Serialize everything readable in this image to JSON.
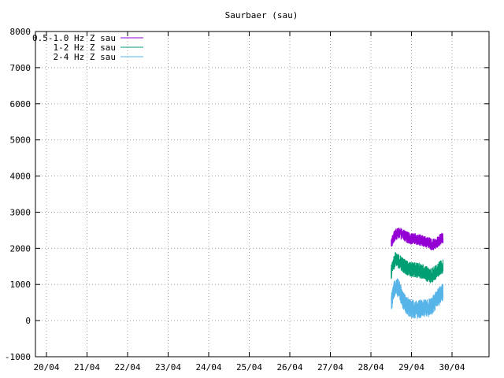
{
  "chart_data": {
    "type": "line",
    "title": "Saurbaer (sau)",
    "xlabel": "",
    "ylabel": "",
    "x_ticks": [
      "20/04",
      "21/04",
      "22/04",
      "23/04",
      "24/04",
      "25/04",
      "26/04",
      "27/04",
      "28/04",
      "29/04",
      "30/04"
    ],
    "x_range": [
      "19/04 20:00",
      "30/04 12:00"
    ],
    "y_ticks": [
      -1000,
      0,
      1000,
      2000,
      3000,
      4000,
      5000,
      6000,
      7000,
      8000
    ],
    "ylim": [
      -1000,
      8000
    ],
    "grid": true,
    "legend_position": "top-left",
    "series": [
      {
        "name": "0.5-1.0 Hz Z sau",
        "color": "#9400d3",
        "data_range": [
          "28/04 12:00",
          "29/04 19:00"
        ],
        "points": [
          [
            28.5,
            2150
          ],
          [
            28.6,
            2380
          ],
          [
            28.7,
            2420
          ],
          [
            28.8,
            2380
          ],
          [
            28.9,
            2300
          ],
          [
            29.0,
            2260
          ],
          [
            29.1,
            2250
          ],
          [
            29.2,
            2230
          ],
          [
            29.3,
            2200
          ],
          [
            29.4,
            2170
          ],
          [
            29.5,
            2100
          ],
          [
            29.6,
            2120
          ],
          [
            29.7,
            2230
          ],
          [
            29.78,
            2300
          ]
        ],
        "noise": 160
      },
      {
        "name": "1-2 Hz Z sau",
        "color": "#009e73",
        "data_range": [
          "28/04 12:00",
          "29/04 19:00"
        ],
        "points": [
          [
            28.5,
            1350
          ],
          [
            28.6,
            1700
          ],
          [
            28.7,
            1620
          ],
          [
            28.8,
            1520
          ],
          [
            28.9,
            1450
          ],
          [
            29.0,
            1420
          ],
          [
            29.1,
            1400
          ],
          [
            29.2,
            1380
          ],
          [
            29.3,
            1350
          ],
          [
            29.4,
            1280
          ],
          [
            29.5,
            1250
          ],
          [
            29.6,
            1330
          ],
          [
            29.7,
            1450
          ],
          [
            29.78,
            1500
          ]
        ],
        "noise": 210
      },
      {
        "name": "2-4 Hz Z sau",
        "color": "#56b4e9",
        "data_range": [
          "28/04 12:00",
          "29/04 19:00"
        ],
        "points": [
          [
            28.5,
            500
          ],
          [
            28.55,
            700
          ],
          [
            28.6,
            1000
          ],
          [
            28.7,
            850
          ],
          [
            28.8,
            550
          ],
          [
            28.9,
            400
          ],
          [
            29.0,
            330
          ],
          [
            29.1,
            300
          ],
          [
            29.2,
            320
          ],
          [
            29.3,
            350
          ],
          [
            29.4,
            330
          ],
          [
            29.5,
            400
          ],
          [
            29.6,
            550
          ],
          [
            29.7,
            700
          ],
          [
            29.78,
            800
          ]
        ],
        "noise": 260
      }
    ]
  }
}
